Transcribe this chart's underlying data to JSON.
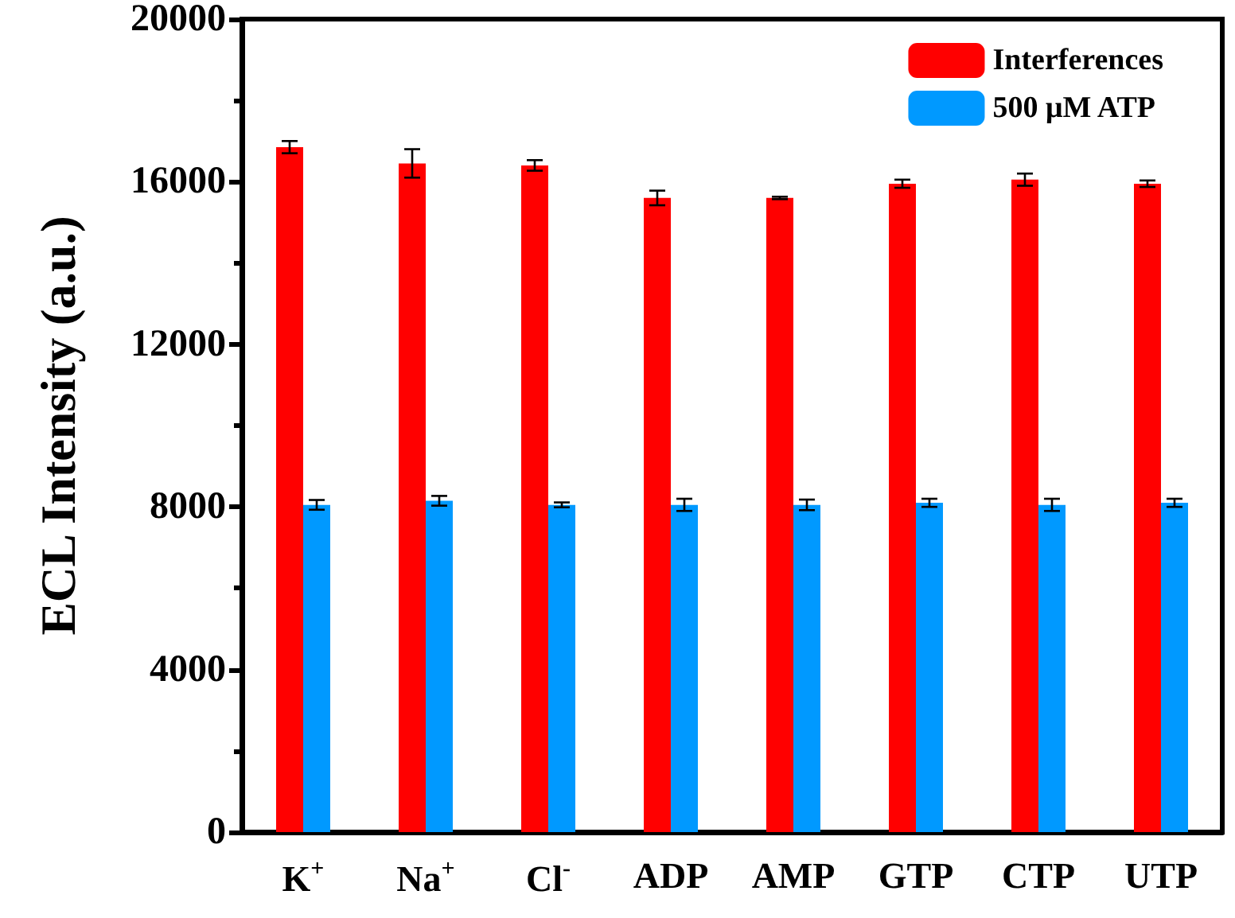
{
  "chart_data": {
    "type": "bar",
    "ylabel": "ECL Intensity (a.u.)",
    "categories": [
      "K$^{+}$",
      "Na$^{+}$",
      "Cl$^{-}$",
      "ADP",
      "AMP",
      "GTP",
      "CTP",
      "UTP"
    ],
    "series": [
      {
        "name": "Interferences",
        "color": "#ff0000",
        "values": [
          16850,
          16450,
          16400,
          15600,
          15600,
          15950,
          16050,
          15950
        ],
        "errors": [
          150,
          350,
          130,
          180,
          30,
          100,
          150,
          80
        ]
      },
      {
        "name": "500 μM ATP",
        "color": "#0099ff",
        "values": [
          8050,
          8150,
          8050,
          8050,
          8050,
          8100,
          8050,
          8100
        ],
        "errors": [
          120,
          120,
          60,
          150,
          130,
          100,
          150,
          100
        ]
      }
    ],
    "ylim": [
      0,
      20000
    ],
    "yticks": [
      0,
      4000,
      8000,
      12000,
      16000,
      20000
    ],
    "grid": false,
    "legend": "top right"
  }
}
